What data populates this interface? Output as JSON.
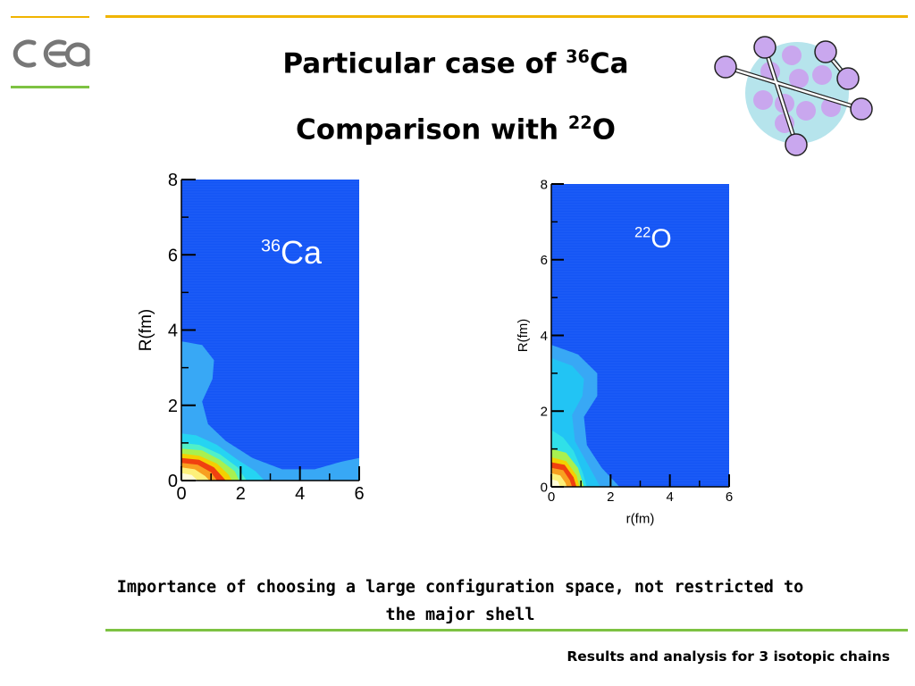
{
  "header": {
    "logo_text": "cea",
    "title_line1": "Particular case of",
    "title_line1_sup": "36",
    "title_line1_suffix": "Ca",
    "title_line2": "Comparison with",
    "title_line2_sup": "22",
    "title_line2_suffix": "O"
  },
  "colors": {
    "accent_yellow": "#f0b400",
    "accent_green": "#7dc242",
    "plot_background": "#1455f5",
    "nucleus_blob": "#b6e4ec",
    "nucleon": "#c9a7ee"
  },
  "chart_data": [
    {
      "type": "heatmap",
      "title": "",
      "panel_label_sup": "36",
      "panel_label": "Ca",
      "xlabel": "",
      "ylabel": "R(fm)",
      "x_ticks": [
        "0",
        "2",
        "4",
        "6"
      ],
      "y_ticks": [
        "0",
        "2",
        "4",
        "6",
        "8"
      ],
      "xlim": [
        0,
        6
      ],
      "ylim": [
        0,
        8
      ],
      "grid": false,
      "contour_levels": [
        {
          "level": 1,
          "color": "#38a8f5",
          "boundary": [
            [
              0,
              3.7
            ],
            [
              0.7,
              3.6
            ],
            [
              1.1,
              3.2
            ],
            [
              1.05,
              2.7
            ],
            [
              0.7,
              2.1
            ],
            [
              0.9,
              1.5
            ],
            [
              1.5,
              1.05
            ],
            [
              2.4,
              0.6
            ],
            [
              3.4,
              0.3
            ],
            [
              4.5,
              0.3
            ],
            [
              5.4,
              0.5
            ],
            [
              6,
              0.6
            ],
            [
              6,
              0
            ]
          ]
        },
        {
          "level": 2,
          "color": "#25d4f2",
          "boundary": [
            [
              0,
              1.25
            ],
            [
              0.5,
              1.2
            ],
            [
              1.2,
              0.95
            ],
            [
              1.9,
              0.55
            ],
            [
              2.5,
              0.25
            ],
            [
              2.8,
              0
            ]
          ]
        },
        {
          "level": 3,
          "color": "#50f0c8",
          "boundary": [
            [
              0,
              1.0
            ],
            [
              0.6,
              0.95
            ],
            [
              1.3,
              0.7
            ],
            [
              1.9,
              0.35
            ],
            [
              2.2,
              0
            ]
          ]
        },
        {
          "level": 4,
          "color": "#a8f050",
          "boundary": [
            [
              0,
              0.85
            ],
            [
              0.7,
              0.8
            ],
            [
              1.3,
              0.55
            ],
            [
              1.8,
              0.25
            ],
            [
              1.95,
              0
            ]
          ]
        },
        {
          "level": 5,
          "color": "#f4d000",
          "boundary": [
            [
              0,
              0.72
            ],
            [
              0.6,
              0.66
            ],
            [
              1.2,
              0.45
            ],
            [
              1.6,
              0.15
            ],
            [
              1.7,
              0
            ]
          ]
        },
        {
          "level": 6,
          "color": "#f04010",
          "boundary": [
            [
              0,
              0.6
            ],
            [
              0.6,
              0.55
            ],
            [
              1.1,
              0.35
            ],
            [
              1.5,
              0
            ]
          ]
        },
        {
          "level": 7,
          "color": "#f8a020",
          "boundary": [
            [
              0,
              0.47
            ],
            [
              0.55,
              0.42
            ],
            [
              1.0,
              0.22
            ],
            [
              1.2,
              0
            ]
          ]
        },
        {
          "level": 8,
          "color": "#fdf07a",
          "boundary": [
            [
              0,
              0.35
            ],
            [
              0.45,
              0.3
            ],
            [
              0.8,
              0.12
            ],
            [
              0.95,
              0
            ]
          ]
        },
        {
          "level": 9,
          "color": "#fffbd8",
          "boundary": [
            [
              0,
              0.2
            ],
            [
              0.35,
              0.15
            ],
            [
              0.55,
              0
            ]
          ]
        }
      ]
    },
    {
      "type": "heatmap",
      "title": "",
      "panel_label_sup": "22",
      "panel_label": "O",
      "xlabel": "r(fm)",
      "ylabel": "R(fm)",
      "x_ticks": [
        "0",
        "2",
        "4",
        "6"
      ],
      "y_ticks": [
        "0",
        "2",
        "4",
        "6",
        "8"
      ],
      "xlim": [
        0,
        6
      ],
      "ylim": [
        0,
        8
      ],
      "grid": false,
      "contour_levels": [
        {
          "level": 1,
          "color": "#38a8f5",
          "boundary": [
            [
              0,
              3.75
            ],
            [
              0.9,
              3.5
            ],
            [
              1.55,
              3.0
            ],
            [
              1.55,
              2.4
            ],
            [
              1.1,
              1.85
            ],
            [
              1.2,
              1.1
            ],
            [
              1.7,
              0.5
            ],
            [
              2.3,
              0
            ]
          ]
        },
        {
          "level": 2,
          "color": "#22c4f4",
          "boundary": [
            [
              0,
              3.4
            ],
            [
              0.7,
              3.2
            ],
            [
              1.1,
              2.85
            ],
            [
              1.05,
              2.4
            ],
            [
              0.7,
              1.9
            ],
            [
              0.8,
              1.2
            ],
            [
              1.3,
              0.5
            ],
            [
              1.65,
              0
            ]
          ]
        },
        {
          "level": 3,
          "color": "#30e0e8",
          "boundary": [
            [
              0,
              1.5
            ],
            [
              0.4,
              1.3
            ],
            [
              0.75,
              0.95
            ],
            [
              1.05,
              0.4
            ],
            [
              1.2,
              0
            ]
          ]
        },
        {
          "level": 4,
          "color": "#a8f050",
          "boundary": [
            [
              0,
              1.0
            ],
            [
              0.5,
              0.9
            ],
            [
              0.9,
              0.5
            ],
            [
              1.1,
              0
            ]
          ]
        },
        {
          "level": 5,
          "color": "#f4d000",
          "boundary": [
            [
              0,
              0.78
            ],
            [
              0.5,
              0.68
            ],
            [
              0.85,
              0.3
            ],
            [
              0.95,
              0
            ]
          ]
        },
        {
          "level": 6,
          "color": "#f04010",
          "boundary": [
            [
              0,
              0.65
            ],
            [
              0.45,
              0.58
            ],
            [
              0.75,
              0.25
            ],
            [
              0.85,
              0
            ]
          ]
        },
        {
          "level": 7,
          "color": "#f8a020",
          "boundary": [
            [
              0,
              0.5
            ],
            [
              0.4,
              0.44
            ],
            [
              0.62,
              0.18
            ],
            [
              0.7,
              0
            ]
          ]
        },
        {
          "level": 8,
          "color": "#fdf07a",
          "boundary": [
            [
              0,
              0.36
            ],
            [
              0.3,
              0.3
            ],
            [
              0.48,
              0.1
            ],
            [
              0.52,
              0
            ]
          ]
        },
        {
          "level": 9,
          "color": "#fffbd8",
          "boundary": [
            [
              0,
              0.2
            ],
            [
              0.22,
              0.15
            ],
            [
              0.3,
              0
            ]
          ]
        }
      ]
    }
  ],
  "conclusion": {
    "line1": "Importance of choosing a large configuration space, not restricted to",
    "line2": "the major shell"
  },
  "footer": {
    "text": "Results and analysis for 3 isotopic chains"
  }
}
